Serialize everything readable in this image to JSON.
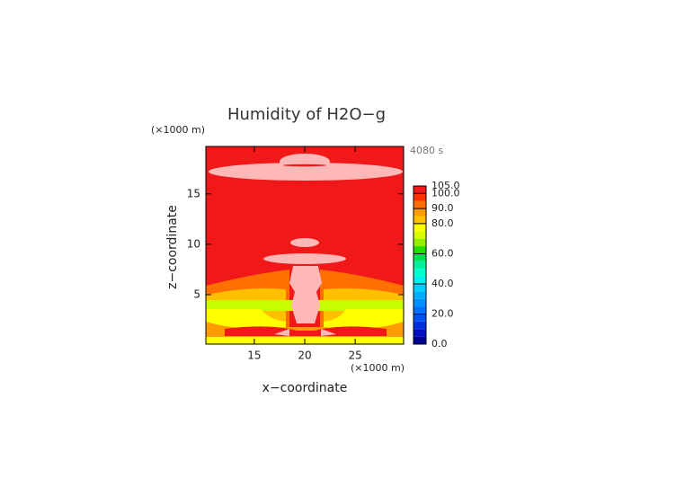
{
  "chart_data": {
    "type": "contour",
    "title": "Humidity of H2O−g",
    "x_label": "x−coordinate",
    "y_label": "z−coordinate",
    "x_unit": "(×1000 m)",
    "y_unit": "(×1000 m)",
    "time_label": "4080 s",
    "xlim": [
      10.2,
      29.8
    ],
    "ylim": [
      0.1,
      19.7
    ],
    "xticks": [
      15,
      20,
      25
    ],
    "yticks": [
      5,
      10,
      15
    ],
    "colorbar": {
      "levels": [
        0,
        5,
        10,
        15,
        20,
        25,
        30,
        35,
        40,
        45,
        50,
        55,
        60,
        65,
        70,
        75,
        80,
        85,
        90,
        95,
        100,
        105
      ],
      "colors": [
        "#000090",
        "#0010c0",
        "#0030e0",
        "#0050f0",
        "#0070ff",
        "#0090ff",
        "#00b0ff",
        "#00d0ff",
        "#00f0f0",
        "#00ffd0",
        "#00f0a0",
        "#00e060",
        "#20e000",
        "#90f000",
        "#d8ff00",
        "#ffff00",
        "#ffc000",
        "#ff9a00",
        "#ff7000",
        "#ff3000",
        "#f01818"
      ],
      "ticks": [
        {
          "value": 0,
          "label": "0.0"
        },
        {
          "value": 20,
          "label": "20.0"
        },
        {
          "value": 40,
          "label": "40.0"
        },
        {
          "value": 60,
          "label": "60.0"
        },
        {
          "value": 80,
          "label": "80.0"
        },
        {
          "value": 90,
          "label": "90.0"
        },
        {
          "value": 100,
          "label": "100.0"
        },
        {
          "value": 105,
          "label": "105.0"
        }
      ]
    }
  }
}
